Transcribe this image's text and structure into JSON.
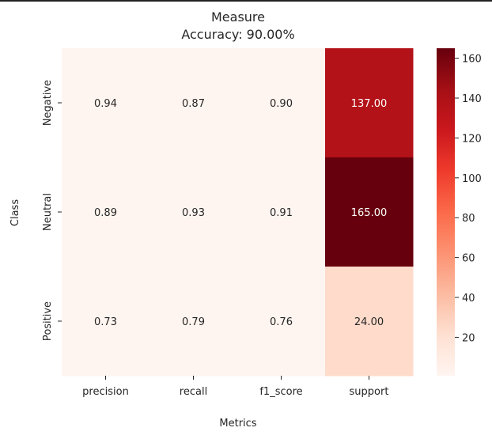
{
  "chart_data": {
    "type": "heatmap",
    "title": "Measure",
    "subtitle": "Accuracy: 90.00%",
    "xlabel": "Metrics",
    "ylabel": "Class",
    "columns": [
      "precision",
      "recall",
      "f1_score",
      "support"
    ],
    "rows": [
      "Negative",
      "Neutral",
      "Positive"
    ],
    "values": [
      [
        0.94,
        0.87,
        0.9,
        137.0
      ],
      [
        0.89,
        0.93,
        0.91,
        165.0
      ],
      [
        0.73,
        0.79,
        0.76,
        24.0
      ]
    ],
    "cell_labels": [
      [
        "0.94",
        "0.87",
        "0.90",
        "137.00"
      ],
      [
        "0.89",
        "0.93",
        "0.91",
        "165.00"
      ],
      [
        "0.73",
        "0.79",
        "0.76",
        "24.00"
      ]
    ],
    "colormap": "Reds",
    "colorbar": {
      "range": [
        0.73,
        165
      ],
      "ticks": [
        20,
        40,
        60,
        80,
        100,
        120,
        140,
        160
      ]
    }
  }
}
